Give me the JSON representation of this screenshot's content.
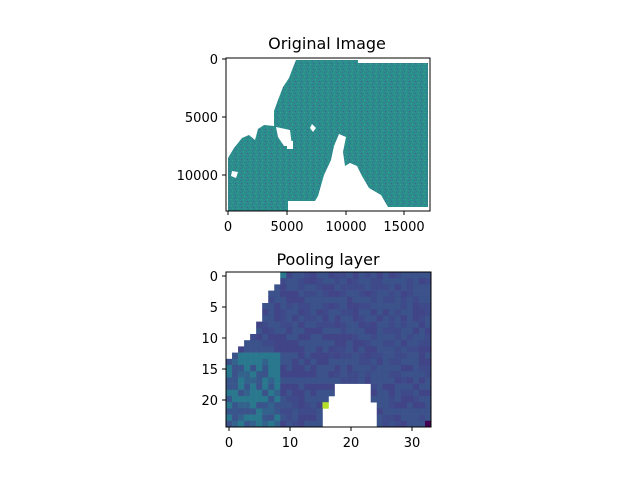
{
  "figure": {
    "background": "#ffffff"
  },
  "chart_data": [
    {
      "type": "heatmap",
      "title": "Original Image",
      "colormap": "viridis",
      "missing_color": "#ffffff",
      "x_ticks": [
        "0",
        "5000",
        "10000",
        "15000"
      ],
      "y_ticks": [
        "0",
        "5000",
        "10000"
      ],
      "xlim": [
        0,
        17400
      ],
      "ylim": [
        13200,
        0
      ],
      "grid": false,
      "description_values": "noisy teal raster, mostly mid-range values, white = no data"
    },
    {
      "type": "heatmap",
      "title": "Pooling layer",
      "colormap": "viridis",
      "missing_color": "#ffffff",
      "x_ticks": [
        "0",
        "10",
        "20",
        "30"
      ],
      "y_ticks": [
        "0",
        "5",
        "10",
        "15",
        "20"
      ],
      "xlim": [
        -0.5,
        33.5
      ],
      "ylim": [
        24.5,
        -0.5
      ],
      "grid": false,
      "grid_size": [
        34,
        25
      ]
    }
  ]
}
